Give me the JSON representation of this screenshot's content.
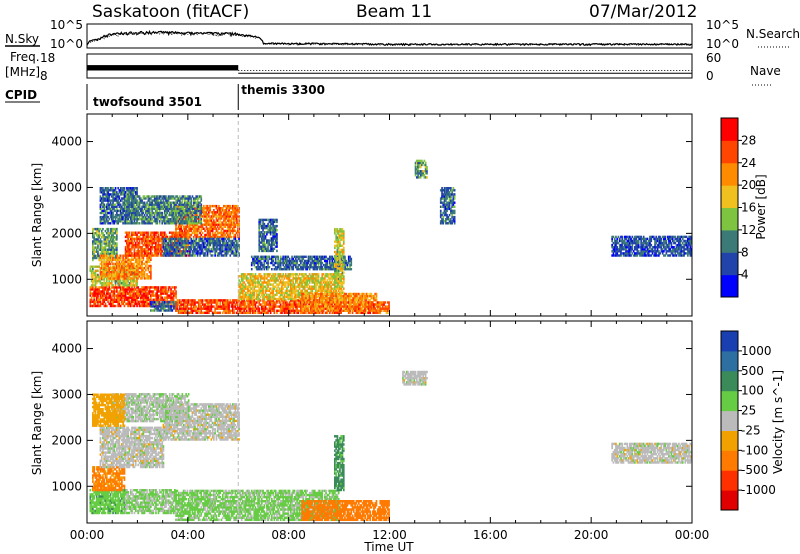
{
  "header": {
    "station": "Saskatoon (fitACF)",
    "beam": "Beam 11",
    "date": "07/Mar/2012"
  },
  "noise_panel": {
    "left_label": "N.Sky",
    "left_ticks": [
      "10^5",
      "10^0"
    ],
    "right_label": "N.Search",
    "right_ticks": [
      "10^5",
      "10^0"
    ]
  },
  "freq_panel": {
    "left_label_1": "Freq.",
    "left_label_2": "[MHz]",
    "left_ticks": [
      "18",
      "8"
    ],
    "right_label": "Nave",
    "right_ticks": [
      "60",
      "0"
    ]
  },
  "cpid": {
    "label": "CPID",
    "modes": [
      {
        "name": "twofsound 3501",
        "start_hour": 0,
        "end_hour": 6
      },
      {
        "name": "themis 3300",
        "start_hour": 6,
        "end_hour": 24
      }
    ]
  },
  "x_axis": {
    "label": "Time UT",
    "ticks": [
      "00:00",
      "04:00",
      "08:00",
      "12:00",
      "16:00",
      "20:00",
      "00:00"
    ]
  },
  "y_axis": {
    "label": "Slant Range [km]",
    "ticks": [
      "1000",
      "2000",
      "3000",
      "4000"
    ]
  },
  "power_colorbar": {
    "label": "Power [dB]",
    "ticks": [
      "4",
      "8",
      "12",
      "16",
      "20",
      "24",
      "28"
    ],
    "colors": [
      "#0000ff",
      "#2244aa",
      "#3c7a78",
      "#7fc441",
      "#f0c020",
      "#ff8c00",
      "#ff4500",
      "#ff0000"
    ]
  },
  "velocity_colorbar": {
    "label": "Velocity [m s^-1]",
    "ticks": [
      "1000",
      "500",
      "100",
      "25",
      "-25",
      "-100",
      "-500",
      "-1000"
    ],
    "colors": [
      "#1a3fb0",
      "#2c6fa0",
      "#3b8a5a",
      "#66cc44",
      "#bbbbbb",
      "#f2a200",
      "#ff7a00",
      "#ff3000",
      "#e00000"
    ]
  },
  "chart_data": [
    {
      "type": "line",
      "title": "N.Sky / N.Search",
      "x_unit": "hours UT",
      "x": [
        0,
        0.5,
        1,
        2,
        3,
        4,
        5,
        6,
        7,
        10,
        12,
        16,
        20,
        24
      ],
      "series": [
        {
          "name": "N.Sky",
          "values": [
            3,
            60,
            500,
            1500,
            1500,
            1000,
            800,
            700,
            5,
            4,
            3,
            3,
            3,
            3
          ]
        },
        {
          "name": "N.Search",
          "values": [
            2,
            30,
            300,
            1000,
            1000,
            800,
            600,
            500,
            4,
            3,
            3,
            3,
            3,
            3
          ]
        }
      ],
      "ylim": [
        1,
        100000
      ],
      "yscale": "log"
    },
    {
      "type": "line",
      "title": "Freq. [MHz] / Nave",
      "x_unit": "hours UT",
      "x": [
        0,
        6,
        6.01,
        24
      ],
      "series": [
        {
          "name": "Freq.",
          "values": [
            11,
            11,
            9,
            9
          ]
        },
        {
          "name": "Nave",
          "values": [
            25,
            25,
            15,
            15
          ]
        }
      ],
      "ylim": [
        8,
        18
      ],
      "ylim_right": [
        0,
        60
      ]
    },
    {
      "type": "heatmap",
      "title": "Power [dB]",
      "xlabel": "Time UT",
      "ylabel": "Slant Range [km]",
      "xlim": [
        0,
        24
      ],
      "ylim": [
        200,
        4600
      ],
      "zlim": [
        0,
        30
      ],
      "regions": [
        {
          "t0": 0.1,
          "t1": 3.5,
          "r0": 400,
          "r1": 850,
          "value": 27
        },
        {
          "t0": 0.1,
          "t1": 2.0,
          "r0": 850,
          "r1": 1300,
          "value": 16
        },
        {
          "t0": 0.2,
          "t1": 1.2,
          "r0": 1400,
          "r1": 2100,
          "value": 12
        },
        {
          "t0": 0.5,
          "t1": 2.0,
          "r0": 2200,
          "r1": 3000,
          "value": 8
        },
        {
          "t0": 0.5,
          "t1": 2.5,
          "r0": 1000,
          "r1": 1500,
          "value": 22
        },
        {
          "t0": 1.5,
          "t1": 4.0,
          "r0": 1500,
          "r1": 2000,
          "value": 26
        },
        {
          "t0": 3.5,
          "t1": 6.0,
          "r0": 1900,
          "r1": 2600,
          "value": 24
        },
        {
          "t0": 1.5,
          "t1": 4.5,
          "r0": 2200,
          "r1": 2800,
          "value": 10
        },
        {
          "t0": 3.0,
          "t1": 6.0,
          "r0": 1500,
          "r1": 1900,
          "value": 8
        },
        {
          "t0": 2.5,
          "t1": 3.8,
          "r0": 300,
          "r1": 500,
          "value": 8
        },
        {
          "t0": 3.5,
          "t1": 10.0,
          "r0": 250,
          "r1": 550,
          "value": 26
        },
        {
          "t0": 6.0,
          "t1": 10.2,
          "r0": 550,
          "r1": 1100,
          "value": 18
        },
        {
          "t0": 8.5,
          "t1": 11.5,
          "r0": 300,
          "r1": 700,
          "value": 22
        },
        {
          "t0": 10.0,
          "t1": 12.0,
          "r0": 250,
          "r1": 500,
          "value": 24
        },
        {
          "t0": 6.5,
          "t1": 10.5,
          "r0": 1200,
          "r1": 1500,
          "value": 8
        },
        {
          "t0": 9.8,
          "t1": 10.2,
          "r0": 900,
          "r1": 2100,
          "value": 16
        },
        {
          "t0": 6.8,
          "t1": 7.5,
          "r0": 1600,
          "r1": 2300,
          "value": 8
        },
        {
          "t0": 13.0,
          "t1": 13.5,
          "r0": 3200,
          "r1": 3600,
          "value": 12
        },
        {
          "t0": 14.0,
          "t1": 14.6,
          "r0": 2200,
          "r1": 3000,
          "value": 8
        },
        {
          "t0": 20.8,
          "t1": 24.0,
          "r0": 1500,
          "r1": 1950,
          "value": 7
        }
      ]
    },
    {
      "type": "heatmap",
      "title": "Velocity [m s^-1]",
      "xlabel": "Time UT",
      "ylabel": "Slant Range [km]",
      "xlim": [
        0,
        24
      ],
      "ylim": [
        200,
        4600
      ],
      "zlim": [
        -1000,
        1000
      ],
      "regions": [
        {
          "t0": 0.1,
          "t1": 1.5,
          "r0": 400,
          "r1": 900,
          "value": 80
        },
        {
          "t0": 1.5,
          "t1": 3.5,
          "r0": 400,
          "r1": 900,
          "value": 30
        },
        {
          "t0": 0.2,
          "t1": 1.5,
          "r0": 900,
          "r1": 1400,
          "value": -120
        },
        {
          "t0": 0.5,
          "t1": 3.0,
          "r0": 1400,
          "r1": 2300,
          "value": 0
        },
        {
          "t0": 3.0,
          "t1": 6.0,
          "r0": 2000,
          "r1": 2800,
          "value": 0
        },
        {
          "t0": 1.0,
          "t1": 4.0,
          "r0": 2400,
          "r1": 3000,
          "value": 10
        },
        {
          "t0": 0.2,
          "t1": 1.5,
          "r0": 2300,
          "r1": 3000,
          "value": -60
        },
        {
          "t0": 3.5,
          "t1": 10.0,
          "r0": 250,
          "r1": 900,
          "value": 40
        },
        {
          "t0": 8.5,
          "t1": 12.0,
          "r0": 250,
          "r1": 700,
          "value": -150
        },
        {
          "t0": 9.8,
          "t1": 10.2,
          "r0": 900,
          "r1": 2100,
          "value": 120
        },
        {
          "t0": 12.5,
          "t1": 13.5,
          "r0": 3200,
          "r1": 3500,
          "value": 0
        },
        {
          "t0": 20.8,
          "t1": 24.0,
          "r0": 1500,
          "r1": 1950,
          "value": 0
        }
      ]
    }
  ]
}
